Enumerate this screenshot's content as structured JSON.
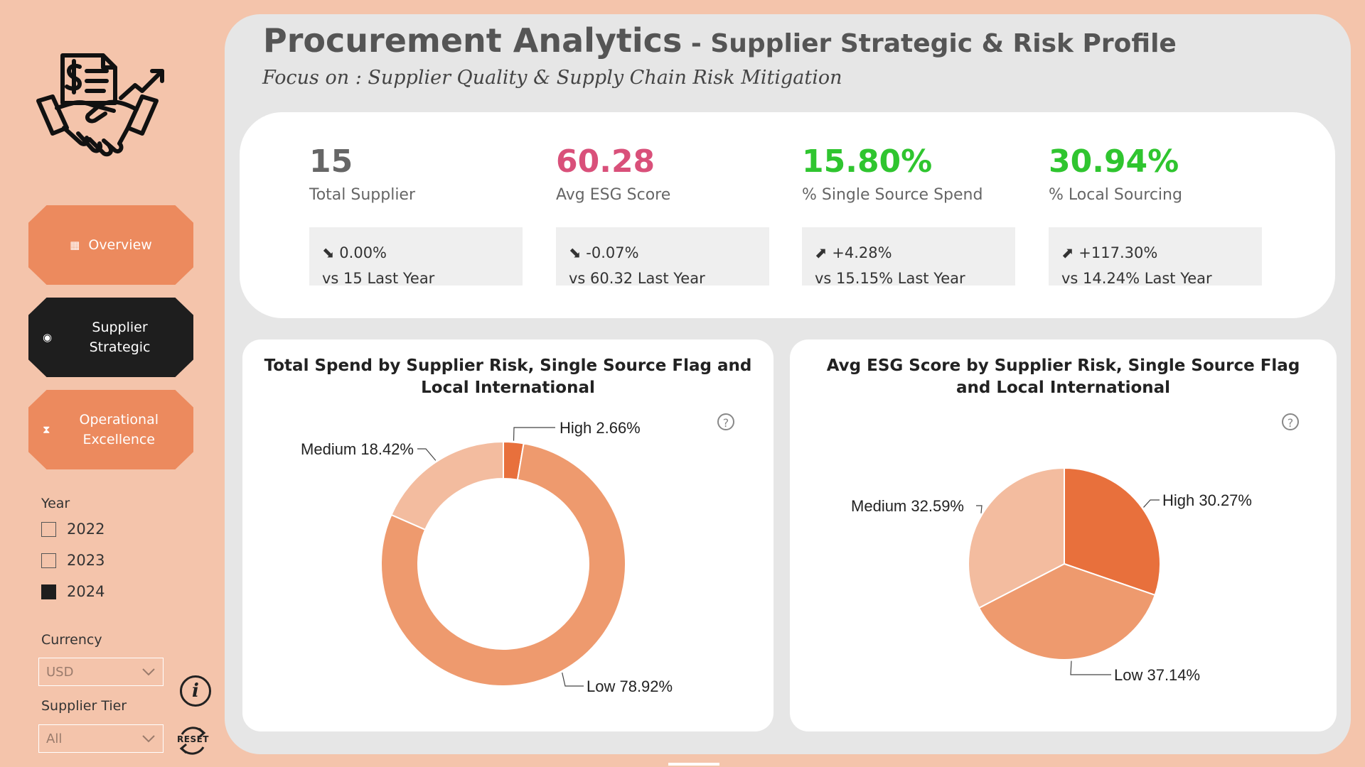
{
  "header": {
    "title_main": "Procurement Analytics",
    "title_sub": " - Supplier Strategic & Risk Profile",
    "subtitle": "Focus on : Supplier Quality & Supply Chain Risk Mitigation"
  },
  "nav": {
    "items": [
      {
        "label": "Overview",
        "icon": "table-icon",
        "active": false
      },
      {
        "label": "Supplier Strategic",
        "icon": "radio-dot-icon",
        "active": true
      },
      {
        "label": "Operational Excellence",
        "icon": "hourglass-icon",
        "active": false
      }
    ]
  },
  "filters": {
    "year_label": "Year",
    "years": [
      {
        "label": "2022",
        "checked": false
      },
      {
        "label": "2023",
        "checked": false
      },
      {
        "label": "2024",
        "checked": true
      }
    ],
    "currency_label": "Currency",
    "currency_value": "USD",
    "tier_label": "Supplier Tier",
    "tier_value": "All"
  },
  "actions": {
    "reset_label": "RESET"
  },
  "kpis": [
    {
      "value": "15",
      "label": "Total Supplier",
      "change": "0.00%",
      "compare": "vs 15 Last Year",
      "trend": "down",
      "color": "#666666"
    },
    {
      "value": "60.28",
      "label": "Avg ESG Score",
      "change": "-0.07%",
      "compare": "vs 60.32 Last Year",
      "trend": "down",
      "color": "#d9507a"
    },
    {
      "value": "15.80%",
      "label": "% Single Source Spend",
      "change": "+4.28%",
      "compare": "vs 15.15% Last Year",
      "trend": "up",
      "color": "#2fc52f"
    },
    {
      "value": "30.94%",
      "label": "% Local Sourcing",
      "change": "+117.30%",
      "compare": "vs 14.24% Last Year",
      "trend": "up",
      "color": "#2fc52f"
    }
  ],
  "chart_data": [
    {
      "type": "pie",
      "variant": "donut",
      "title": "Total Spend by Supplier Risk, Single Source Flag and Local International",
      "categories": [
        "High",
        "Low",
        "Medium"
      ],
      "values": [
        2.66,
        78.92,
        18.42
      ],
      "labels": [
        "High 2.66%",
        "Low 78.92%",
        "Medium 18.42%"
      ],
      "colors": [
        "#e8703c",
        "#ee9a6e",
        "#f3bc9f"
      ]
    },
    {
      "type": "pie",
      "title": "Avg ESG Score by Supplier Risk, Single Source Flag and Local International",
      "categories": [
        "High",
        "Low",
        "Medium"
      ],
      "values": [
        30.27,
        37.14,
        32.59
      ],
      "labels": [
        "High 30.27%",
        "Low 37.14%",
        "Medium 32.59%"
      ],
      "colors": [
        "#e8703c",
        "#ee9a6e",
        "#f3bc9f"
      ]
    }
  ]
}
